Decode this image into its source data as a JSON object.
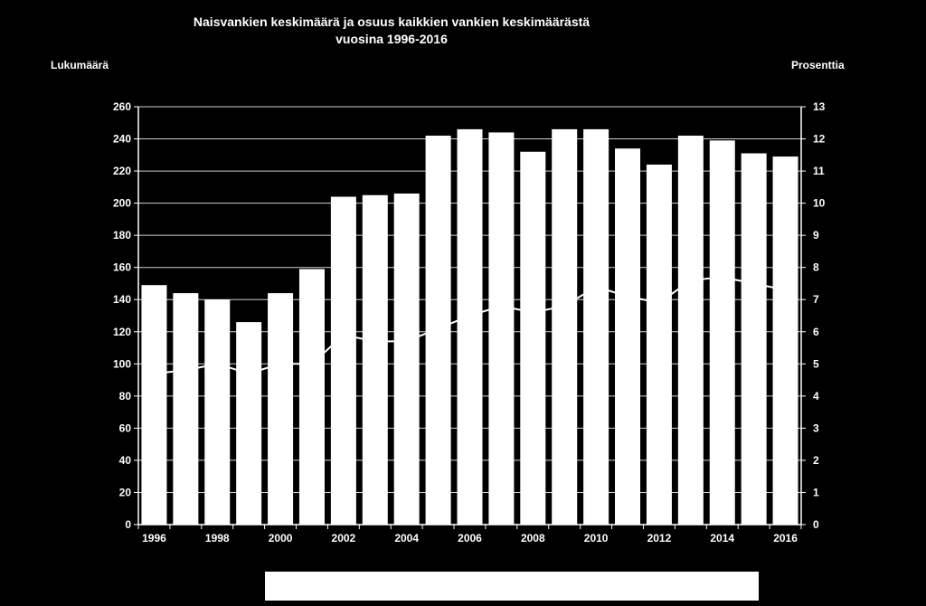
{
  "chart_data": {
    "type": "bar",
    "title": "Naisvankien keskimäärä ja osuus kaikkien vankien keskimäärästä",
    "subtitle": "vuosina 1996-2016",
    "ylabel": "Lukumäärä",
    "y2label": "Prosenttia",
    "ylim": [
      0,
      260
    ],
    "y2lim": [
      0,
      13
    ],
    "yticks": [
      0,
      20,
      40,
      60,
      80,
      100,
      120,
      140,
      160,
      180,
      200,
      220,
      240,
      260
    ],
    "y2ticks": [
      0,
      1,
      2,
      3,
      4,
      5,
      6,
      7,
      8,
      9,
      10,
      11,
      12,
      13
    ],
    "xtick_labels": [
      "1996",
      "1998",
      "2000",
      "2002",
      "2004",
      "2006",
      "2008",
      "2010",
      "2012",
      "2014",
      "2016"
    ],
    "grid": true,
    "categories": [
      "1996",
      "1997",
      "1998",
      "1999",
      "2000",
      "2001",
      "2002",
      "2003",
      "2004",
      "2005",
      "2006",
      "2007",
      "2008",
      "2009",
      "2010",
      "2011",
      "2012",
      "2013",
      "2014",
      "2015",
      "2016"
    ],
    "series": [
      {
        "type": "bar",
        "axis": "left",
        "color": "#ffffff",
        "values": [
          149,
          144,
          140,
          126,
          144,
          159,
          204,
          205,
          206,
          242,
          246,
          244,
          232,
          246,
          246,
          234,
          224,
          242,
          239,
          231,
          229
        ]
      },
      {
        "type": "line",
        "axis": "right",
        "color": "#ffffff",
        "values": [
          4.7,
          4.8,
          5.0,
          4.7,
          5.0,
          5.0,
          5.9,
          5.7,
          5.7,
          6.1,
          6.5,
          6.8,
          6.6,
          6.8,
          7.4,
          7.1,
          6.9,
          7.6,
          7.7,
          7.5,
          7.3
        ]
      }
    ]
  }
}
